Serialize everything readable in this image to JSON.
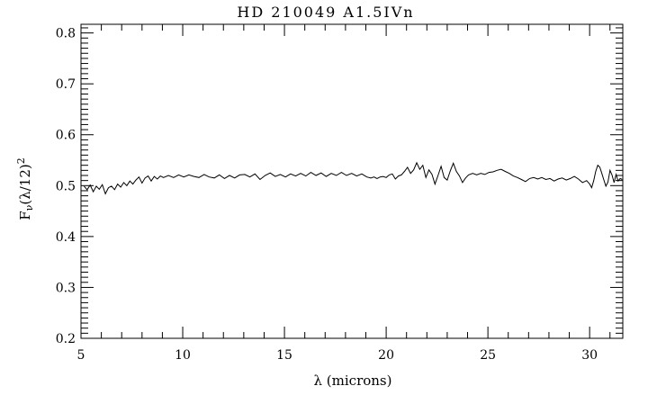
{
  "window": {
    "background": "#ffffff",
    "foreground": "#000000"
  },
  "chart_data": {
    "type": "line",
    "title": "HD 210049 A1.5IVn",
    "xlabel": "λ (microns)",
    "ylabel": "Fν(λ/12)²",
    "ylabel_parts": {
      "base1": "F",
      "sub": "ν",
      "base2": "(λ/12)",
      "sup": "2"
    },
    "xlim": [
      5,
      31.63
    ],
    "ylim": [
      0.2,
      0.817
    ],
    "x_major_ticks": [
      5,
      10,
      15,
      20,
      25,
      30
    ],
    "x_tick_labels": [
      "5",
      "10",
      "15",
      "20",
      "25",
      "30"
    ],
    "x_minor_step": 1,
    "y_major_ticks": [
      0.2,
      0.3,
      0.4,
      0.5,
      0.6,
      0.7,
      0.8
    ],
    "y_tick_labels": [
      "0.2",
      "0.3",
      "0.4",
      "0.5",
      "0.6",
      "0.7",
      "0.8"
    ],
    "y_minor_step": 0.01,
    "grid": false,
    "legend": null,
    "line_color": "#000000",
    "points": [
      [
        5.15,
        0.499
      ],
      [
        5.3,
        0.492
      ],
      [
        5.45,
        0.501
      ],
      [
        5.6,
        0.488
      ],
      [
        5.75,
        0.499
      ],
      [
        5.9,
        0.493
      ],
      [
        6.05,
        0.502
      ],
      [
        6.2,
        0.484
      ],
      [
        6.35,
        0.496
      ],
      [
        6.5,
        0.499
      ],
      [
        6.65,
        0.492
      ],
      [
        6.8,
        0.503
      ],
      [
        6.95,
        0.497
      ],
      [
        7.1,
        0.506
      ],
      [
        7.25,
        0.5
      ],
      [
        7.4,
        0.509
      ],
      [
        7.55,
        0.503
      ],
      [
        7.7,
        0.511
      ],
      [
        7.85,
        0.517
      ],
      [
        8,
        0.505
      ],
      [
        8.15,
        0.515
      ],
      [
        8.3,
        0.519
      ],
      [
        8.45,
        0.509
      ],
      [
        8.6,
        0.518
      ],
      [
        8.75,
        0.513
      ],
      [
        8.9,
        0.519
      ],
      [
        9.05,
        0.516
      ],
      [
        9.3,
        0.52
      ],
      [
        9.55,
        0.516
      ],
      [
        9.8,
        0.521
      ],
      [
        10.05,
        0.517
      ],
      [
        10.3,
        0.521
      ],
      [
        10.55,
        0.518
      ],
      [
        10.8,
        0.516
      ],
      [
        11.05,
        0.522
      ],
      [
        11.3,
        0.517
      ],
      [
        11.55,
        0.515
      ],
      [
        11.8,
        0.521
      ],
      [
        12.05,
        0.514
      ],
      [
        12.3,
        0.52
      ],
      [
        12.55,
        0.515
      ],
      [
        12.8,
        0.521
      ],
      [
        13.05,
        0.522
      ],
      [
        13.3,
        0.517
      ],
      [
        13.55,
        0.523
      ],
      [
        13.8,
        0.512
      ],
      [
        14.05,
        0.52
      ],
      [
        14.3,
        0.525
      ],
      [
        14.55,
        0.518
      ],
      [
        14.8,
        0.522
      ],
      [
        15.05,
        0.517
      ],
      [
        15.3,
        0.523
      ],
      [
        15.55,
        0.519
      ],
      [
        15.8,
        0.524
      ],
      [
        16.05,
        0.519
      ],
      [
        16.3,
        0.526
      ],
      [
        16.55,
        0.52
      ],
      [
        16.8,
        0.525
      ],
      [
        17.05,
        0.518
      ],
      [
        17.3,
        0.524
      ],
      [
        17.55,
        0.52
      ],
      [
        17.8,
        0.526
      ],
      [
        18.05,
        0.52
      ],
      [
        18.3,
        0.524
      ],
      [
        18.55,
        0.519
      ],
      [
        18.8,
        0.523
      ],
      [
        19.05,
        0.517
      ],
      [
        19.25,
        0.515
      ],
      [
        19.4,
        0.517
      ],
      [
        19.55,
        0.514
      ],
      [
        19.7,
        0.517
      ],
      [
        19.85,
        0.518
      ],
      [
        20,
        0.516
      ],
      [
        20.15,
        0.521
      ],
      [
        20.3,
        0.523
      ],
      [
        20.45,
        0.513
      ],
      [
        20.6,
        0.519
      ],
      [
        20.75,
        0.521
      ],
      [
        20.9,
        0.528
      ],
      [
        21.05,
        0.536
      ],
      [
        21.2,
        0.524
      ],
      [
        21.35,
        0.531
      ],
      [
        21.5,
        0.545
      ],
      [
        21.65,
        0.532
      ],
      [
        21.8,
        0.54
      ],
      [
        21.95,
        0.516
      ],
      [
        22.1,
        0.531
      ],
      [
        22.25,
        0.522
      ],
      [
        22.4,
        0.503
      ],
      [
        22.55,
        0.52
      ],
      [
        22.7,
        0.538
      ],
      [
        22.85,
        0.516
      ],
      [
        23,
        0.511
      ],
      [
        23.15,
        0.529
      ],
      [
        23.3,
        0.544
      ],
      [
        23.45,
        0.528
      ],
      [
        23.6,
        0.519
      ],
      [
        23.75,
        0.506
      ],
      [
        23.9,
        0.515
      ],
      [
        24.05,
        0.521
      ],
      [
        24.25,
        0.524
      ],
      [
        24.45,
        0.521
      ],
      [
        24.65,
        0.524
      ],
      [
        24.85,
        0.522
      ],
      [
        25.05,
        0.526
      ],
      [
        25.25,
        0.527
      ],
      [
        25.45,
        0.53
      ],
      [
        25.65,
        0.532
      ],
      [
        25.85,
        0.528
      ],
      [
        26.05,
        0.524
      ],
      [
        26.25,
        0.519
      ],
      [
        26.45,
        0.516
      ],
      [
        26.65,
        0.512
      ],
      [
        26.85,
        0.508
      ],
      [
        27.05,
        0.514
      ],
      [
        27.25,
        0.516
      ],
      [
        27.45,
        0.513
      ],
      [
        27.65,
        0.516
      ],
      [
        27.85,
        0.512
      ],
      [
        28.05,
        0.514
      ],
      [
        28.25,
        0.509
      ],
      [
        28.45,
        0.513
      ],
      [
        28.65,
        0.515
      ],
      [
        28.85,
        0.511
      ],
      [
        29.05,
        0.514
      ],
      [
        29.25,
        0.518
      ],
      [
        29.45,
        0.513
      ],
      [
        29.65,
        0.506
      ],
      [
        29.85,
        0.51
      ],
      [
        30,
        0.503
      ],
      [
        30.1,
        0.496
      ],
      [
        30.2,
        0.51
      ],
      [
        30.3,
        0.528
      ],
      [
        30.4,
        0.54
      ],
      [
        30.5,
        0.536
      ],
      [
        30.6,
        0.524
      ],
      [
        30.7,
        0.511
      ],
      [
        30.8,
        0.499
      ],
      [
        30.9,
        0.507
      ],
      [
        31,
        0.53
      ],
      [
        31.1,
        0.521
      ],
      [
        31.2,
        0.506
      ],
      [
        31.3,
        0.522
      ],
      [
        31.4,
        0.509
      ],
      [
        31.5,
        0.514
      ],
      [
        31.6,
        0.512
      ]
    ]
  }
}
